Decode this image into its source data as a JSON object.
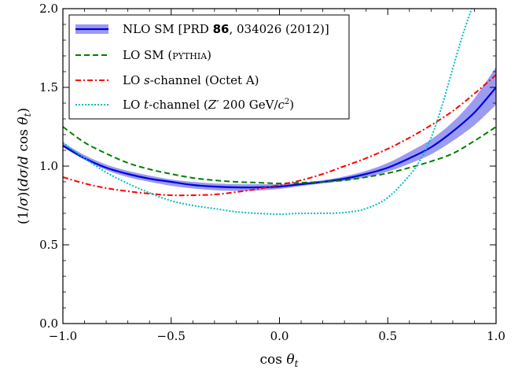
{
  "chart_data": {
    "type": "line",
    "xlabel": "cos θ_t",
    "ylabel": "(1/σ)(dσ/d cos θ_t)",
    "xlim": [
      -1.0,
      1.0
    ],
    "ylim": [
      0.0,
      2.0
    ],
    "xticks": [
      -1.0,
      -0.5,
      0.0,
      0.5,
      1.0
    ],
    "xtick_labels": [
      "−1.0",
      "−0.5",
      "0.0",
      "0.5",
      "1.0"
    ],
    "yticks": [
      0.0,
      0.5,
      1.0,
      1.5,
      2.0
    ],
    "ytick_labels": [
      "0.0",
      "0.5",
      "1.0",
      "1.5",
      "2.0"
    ],
    "grid": false,
    "legend_position": "top-left",
    "series": [
      {
        "name": "NLO SM [PRD 86, 034026 (2012)]",
        "color": "#0000dd",
        "band_color": "#9b9bf2",
        "style": "solid-with-band",
        "x": [
          -1.0,
          -0.9,
          -0.8,
          -0.7,
          -0.6,
          -0.5,
          -0.4,
          -0.3,
          -0.2,
          -0.1,
          0.0,
          0.1,
          0.2,
          0.3,
          0.4,
          0.5,
          0.6,
          0.7,
          0.8,
          0.9,
          1.0
        ],
        "y": [
          1.13,
          1.05,
          0.99,
          0.95,
          0.92,
          0.9,
          0.88,
          0.87,
          0.865,
          0.865,
          0.87,
          0.885,
          0.9,
          0.92,
          0.95,
          0.99,
          1.05,
          1.12,
          1.22,
          1.34,
          1.5
        ],
        "band_low": [
          1.12,
          1.04,
          0.975,
          0.93,
          0.9,
          0.875,
          0.858,
          0.847,
          0.842,
          0.845,
          0.855,
          0.873,
          0.89,
          0.907,
          0.93,
          0.965,
          1.015,
          1.075,
          1.16,
          1.26,
          1.39
        ],
        "band_high": [
          1.15,
          1.07,
          1.01,
          0.97,
          0.94,
          0.915,
          0.9,
          0.89,
          0.885,
          0.885,
          0.885,
          0.895,
          0.91,
          0.935,
          0.97,
          1.02,
          1.09,
          1.17,
          1.28,
          1.43,
          1.63
        ]
      },
      {
        "name": "LO SM (PYTHIA)",
        "color": "#008000",
        "style": "dashed",
        "x": [
          -1.0,
          -0.9,
          -0.8,
          -0.7,
          -0.6,
          -0.5,
          -0.4,
          -0.3,
          -0.2,
          -0.1,
          0.0,
          0.1,
          0.2,
          0.3,
          0.4,
          0.5,
          0.6,
          0.7,
          0.8,
          0.9,
          1.0
        ],
        "y": [
          1.25,
          1.15,
          1.08,
          1.02,
          0.98,
          0.95,
          0.925,
          0.91,
          0.9,
          0.895,
          0.89,
          0.895,
          0.9,
          0.91,
          0.93,
          0.955,
          0.99,
          1.03,
          1.08,
          1.16,
          1.25
        ]
      },
      {
        "name": "LO s-channel (Octet A)",
        "color": "#ff0000",
        "style": "dashdot",
        "x": [
          -1.0,
          -0.9,
          -0.8,
          -0.7,
          -0.6,
          -0.5,
          -0.4,
          -0.3,
          -0.2,
          -0.1,
          0.0,
          0.1,
          0.2,
          0.3,
          0.4,
          0.5,
          0.6,
          0.7,
          0.8,
          0.9,
          1.0
        ],
        "y": [
          0.93,
          0.89,
          0.86,
          0.84,
          0.825,
          0.815,
          0.815,
          0.82,
          0.835,
          0.855,
          0.88,
          0.91,
          0.95,
          1.0,
          1.05,
          1.11,
          1.18,
          1.26,
          1.35,
          1.46,
          1.58
        ]
      },
      {
        "name": "LO t-channel (Z′ 200 GeV/c²)",
        "color": "#00bfbf",
        "style": "dotted",
        "x": [
          -1.0,
          -0.9,
          -0.8,
          -0.7,
          -0.6,
          -0.5,
          -0.4,
          -0.3,
          -0.2,
          -0.1,
          0.0,
          0.1,
          0.2,
          0.3,
          0.4,
          0.5,
          0.6,
          0.65,
          0.7,
          0.75,
          0.8,
          0.85,
          0.9
        ],
        "y": [
          1.15,
          1.05,
          0.96,
          0.89,
          0.83,
          0.78,
          0.75,
          0.73,
          0.71,
          0.7,
          0.695,
          0.7,
          0.7,
          0.705,
          0.73,
          0.8,
          0.94,
          1.04,
          1.18,
          1.38,
          1.62,
          1.85,
          2.05
        ]
      }
    ]
  },
  "legend_items": [
    {
      "prefix": "NLO SM [PRD ",
      "bold": "86",
      "suffix": ", 034026 (2012)]"
    },
    {
      "prefix": "LO SM (",
      "small_caps": "pythia",
      "suffix": ")"
    },
    {
      "prefix": "LO ",
      "italic": "s",
      "suffix": "-channel (Octet A)"
    },
    {
      "prefix": "LO ",
      "italic": "t",
      "suffix": "-channel (",
      "italic2": "Z′",
      "suffix2": " 200 GeV/",
      "italic3": "c",
      "sup": "2",
      "suffix3": ")"
    }
  ]
}
